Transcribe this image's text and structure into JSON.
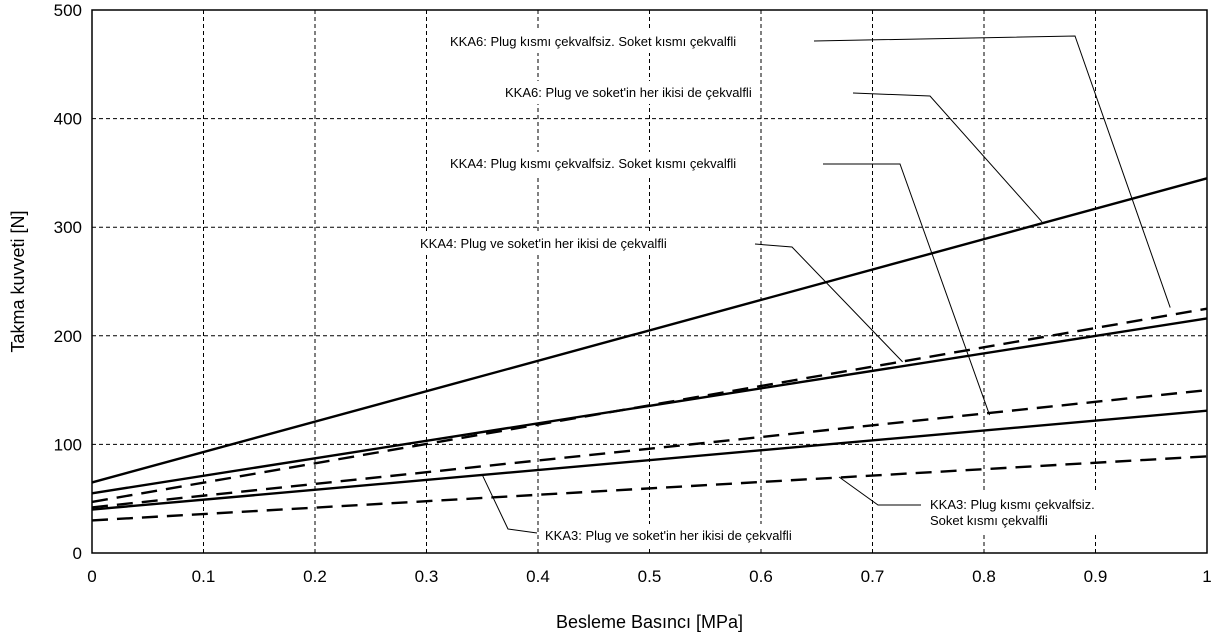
{
  "chart_data": {
    "type": "line",
    "xlabel": "Besleme Basıncı [MPa]",
    "ylabel": "Takma kuvveti [N]",
    "xlim": [
      0,
      1
    ],
    "ylim": [
      0,
      500
    ],
    "x_ticks": [
      "0",
      "0.1",
      "0.2",
      "0.3",
      "0.4",
      "0.5",
      "0.6",
      "0.7",
      "0.8",
      "0.9",
      "1"
    ],
    "y_ticks": [
      "0",
      "100",
      "200",
      "300",
      "400",
      "500"
    ],
    "grid": true,
    "series": [
      {
        "key": "kka6_both",
        "line_style": "solid",
        "x": [
          0,
          1
        ],
        "y": [
          65,
          345
        ]
      },
      {
        "key": "kka6_plug",
        "line_style": "dashed",
        "x": [
          0,
          1
        ],
        "y": [
          47,
          225
        ]
      },
      {
        "key": "kka4_both",
        "line_style": "solid",
        "x": [
          0,
          1
        ],
        "y": [
          55,
          216
        ]
      },
      {
        "key": "kka4_plug",
        "line_style": "dashed",
        "x": [
          0,
          1
        ],
        "y": [
          42,
          150
        ]
      },
      {
        "key": "kka3_both",
        "line_style": "solid",
        "x": [
          0,
          1
        ],
        "y": [
          40,
          131
        ]
      },
      {
        "key": "kka3_plug",
        "line_style": "dashed",
        "x": [
          0,
          1
        ],
        "y": [
          30,
          89
        ]
      }
    ],
    "annotations": [
      {
        "key": "kka6_plug",
        "lines": [
          "KKA6: Plug kısmı çekvalfsiz. Soket kısmı çekvalfli"
        ],
        "points_to": [
          0.967,
          226
        ]
      },
      {
        "key": "kka6_both",
        "lines": [
          "KKA6: Plug ve soket'in her ikisi de çekvalfli"
        ],
        "points_to": [
          0.852,
          305
        ]
      },
      {
        "key": "kka4_plug",
        "lines": [
          "KKA4: Plug kısmı çekvalfsiz. Soket kısmı çekvalfli"
        ],
        "points_to": [
          0.805,
          127
        ]
      },
      {
        "key": "kka4_both",
        "lines": [
          "KKA4: Plug ve soket'in her ikisi de çekvalfli"
        ],
        "points_to": [
          0.727,
          176
        ]
      },
      {
        "key": "kka3_plug",
        "lines": [
          "KKA3: Plug kısmı çekvalfsiz.",
          "Soket kısmı çekvalfli"
        ],
        "points_to": [
          0.67,
          70
        ]
      },
      {
        "key": "kka3_both",
        "lines": [
          "KKA3: Plug ve soket'in her ikisi de çekvalfli"
        ],
        "points_to": [
          0.35,
          72
        ]
      }
    ]
  }
}
